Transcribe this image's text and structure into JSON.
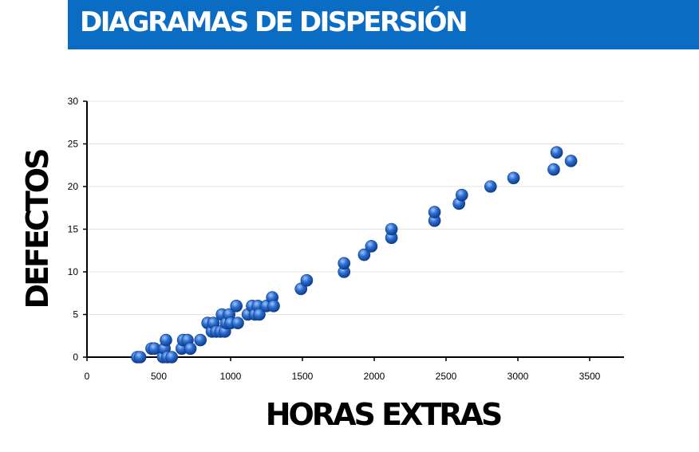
{
  "header": {
    "title": "DIAGRAMAS DE DISPERSIÓN"
  },
  "colors": {
    "banner": "#0a6cc2",
    "point": "#2f6fcf",
    "point_dark": "#0b3a8c",
    "point_light": "#9cc6ff",
    "grid": "#e3e3e3",
    "axis": "#000000"
  },
  "chart_data": {
    "type": "scatter",
    "title": "",
    "xlabel": "HORAS EXTRAS",
    "ylabel": "DEFECTOS",
    "xlim": [
      0,
      3500
    ],
    "ylim": [
      0,
      30
    ],
    "x_ticks": [
      "0",
      "500",
      "1000",
      "1500",
      "2000",
      "2500",
      "3000",
      "3500"
    ],
    "y_ticks": [
      "0",
      "5",
      "10",
      "15",
      "20",
      "25",
      "30"
    ],
    "grid": true,
    "legend": false,
    "points": [
      {
        "x": 350,
        "y": 0
      },
      {
        "x": 370,
        "y": 0
      },
      {
        "x": 450,
        "y": 1
      },
      {
        "x": 470,
        "y": 1
      },
      {
        "x": 530,
        "y": 0
      },
      {
        "x": 540,
        "y": 1
      },
      {
        "x": 550,
        "y": 2
      },
      {
        "x": 560,
        "y": 0
      },
      {
        "x": 590,
        "y": 0
      },
      {
        "x": 660,
        "y": 1
      },
      {
        "x": 670,
        "y": 2
      },
      {
        "x": 700,
        "y": 2
      },
      {
        "x": 720,
        "y": 1
      },
      {
        "x": 790,
        "y": 2
      },
      {
        "x": 840,
        "y": 4
      },
      {
        "x": 870,
        "y": 3
      },
      {
        "x": 880,
        "y": 4
      },
      {
        "x": 900,
        "y": 3
      },
      {
        "x": 930,
        "y": 3
      },
      {
        "x": 940,
        "y": 5
      },
      {
        "x": 960,
        "y": 3
      },
      {
        "x": 970,
        "y": 4
      },
      {
        "x": 990,
        "y": 5
      },
      {
        "x": 1000,
        "y": 4
      },
      {
        "x": 1040,
        "y": 6
      },
      {
        "x": 1050,
        "y": 4
      },
      {
        "x": 1120,
        "y": 5
      },
      {
        "x": 1150,
        "y": 6
      },
      {
        "x": 1170,
        "y": 5
      },
      {
        "x": 1190,
        "y": 6
      },
      {
        "x": 1200,
        "y": 5
      },
      {
        "x": 1250,
        "y": 6
      },
      {
        "x": 1290,
        "y": 7
      },
      {
        "x": 1300,
        "y": 6
      },
      {
        "x": 1490,
        "y": 8
      },
      {
        "x": 1530,
        "y": 9
      },
      {
        "x": 1790,
        "y": 10
      },
      {
        "x": 1790,
        "y": 11
      },
      {
        "x": 1930,
        "y": 12
      },
      {
        "x": 1980,
        "y": 13
      },
      {
        "x": 2120,
        "y": 14
      },
      {
        "x": 2120,
        "y": 15
      },
      {
        "x": 2420,
        "y": 16
      },
      {
        "x": 2420,
        "y": 17
      },
      {
        "x": 2590,
        "y": 18
      },
      {
        "x": 2610,
        "y": 19
      },
      {
        "x": 2810,
        "y": 20
      },
      {
        "x": 2970,
        "y": 21
      },
      {
        "x": 3250,
        "y": 22
      },
      {
        "x": 3270,
        "y": 24
      },
      {
        "x": 3370,
        "y": 23
      }
    ]
  }
}
